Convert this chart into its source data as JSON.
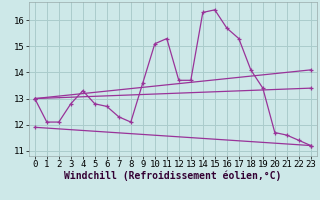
{
  "xlabel": "Windchill (Refroidissement éolien,°C)",
  "bg_color": "#cde8e8",
  "grid_color": "#aacccc",
  "line_color": "#993399",
  "xlim": [
    -0.5,
    23.5
  ],
  "ylim": [
    10.8,
    16.7
  ],
  "yticks": [
    11,
    12,
    13,
    14,
    15,
    16
  ],
  "xticks": [
    0,
    1,
    2,
    3,
    4,
    5,
    6,
    7,
    8,
    9,
    10,
    11,
    12,
    13,
    14,
    15,
    16,
    17,
    18,
    19,
    20,
    21,
    22,
    23
  ],
  "series1_x": [
    0,
    1,
    2,
    3,
    4,
    5,
    6,
    7,
    8,
    9,
    10,
    11,
    12,
    13,
    14,
    15,
    16,
    17,
    18,
    19,
    20,
    21,
    22,
    23
  ],
  "series1_y": [
    13.0,
    12.1,
    12.1,
    12.8,
    13.3,
    12.8,
    12.7,
    12.3,
    12.1,
    13.6,
    15.1,
    15.3,
    13.7,
    13.7,
    16.3,
    16.4,
    15.7,
    15.3,
    14.1,
    13.4,
    11.7,
    11.6,
    11.4,
    11.2
  ],
  "series2_x": [
    0,
    23
  ],
  "series2_y": [
    13.0,
    14.1
  ],
  "series3_x": [
    0,
    23
  ],
  "series3_y": [
    13.0,
    13.4
  ],
  "series4_x": [
    0,
    23
  ],
  "series4_y": [
    11.9,
    11.2
  ],
  "font_size_tick": 6.5,
  "font_size_xlabel": 7.0
}
